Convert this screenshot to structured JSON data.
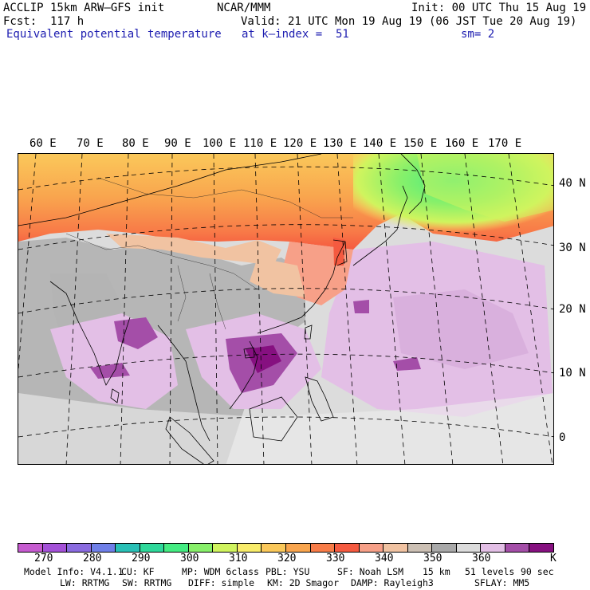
{
  "header": {
    "model": "ACCLIP 15km ARW–GFS init",
    "center": "NCAR/MMM",
    "init": "Init: 00 UTC Thu 15 Aug 19",
    "fcst": "Fcst:  117 h",
    "valid": "Valid: 21 UTC Mon 19 Aug 19 (06 JST Tue 20 Aug 19)",
    "field": "Equivalent potential temperature",
    "level": "at k–index =  51",
    "smooth": "sm= 2"
  },
  "map": {
    "lon_labels": [
      "60 E",
      "70 E",
      "80 E",
      "90 E",
      "100 E",
      "110 E",
      "120 E",
      "130 E",
      "140 E",
      "150 E",
      "160 E",
      "170 E"
    ],
    "lat_labels": [
      "40 N",
      "30 N",
      "20 N",
      "10 N",
      "0"
    ]
  },
  "colorbar": {
    "colors": [
      "#c65bd0",
      "#a451d8",
      "#8a6be0",
      "#6f7fe8",
      "#29c0b6",
      "#2ed89a",
      "#44ec82",
      "#88f06a",
      "#d0f45e",
      "#f8ec6a",
      "#fac85a",
      "#f9a54e",
      "#f87c48",
      "#f55a40",
      "#f7a088",
      "#f1c3a2",
      "#ccc0b4",
      "#a9a9a9",
      "#dcdcdc",
      "#e3bfe6",
      "#a44ea8",
      "#861080"
    ],
    "labels": [
      "270",
      "280",
      "290",
      "300",
      "310",
      "320",
      "330",
      "340",
      "350",
      "360"
    ],
    "unit": "K"
  },
  "footer": {
    "line1": [
      "Model Info: V4.1.1",
      "CU: KF",
      "MP: WDM 6class",
      "PBL: YSU",
      "SF: Noah LSM",
      "15 km",
      "51 levels",
      "90 sec"
    ],
    "line2": [
      "LW: RRTMG",
      "SW: RRTMG",
      "DIFF: simple",
      "KM: 2D Smagor",
      "DAMP: Rayleigh3",
      "SFLAY: MM5"
    ]
  }
}
